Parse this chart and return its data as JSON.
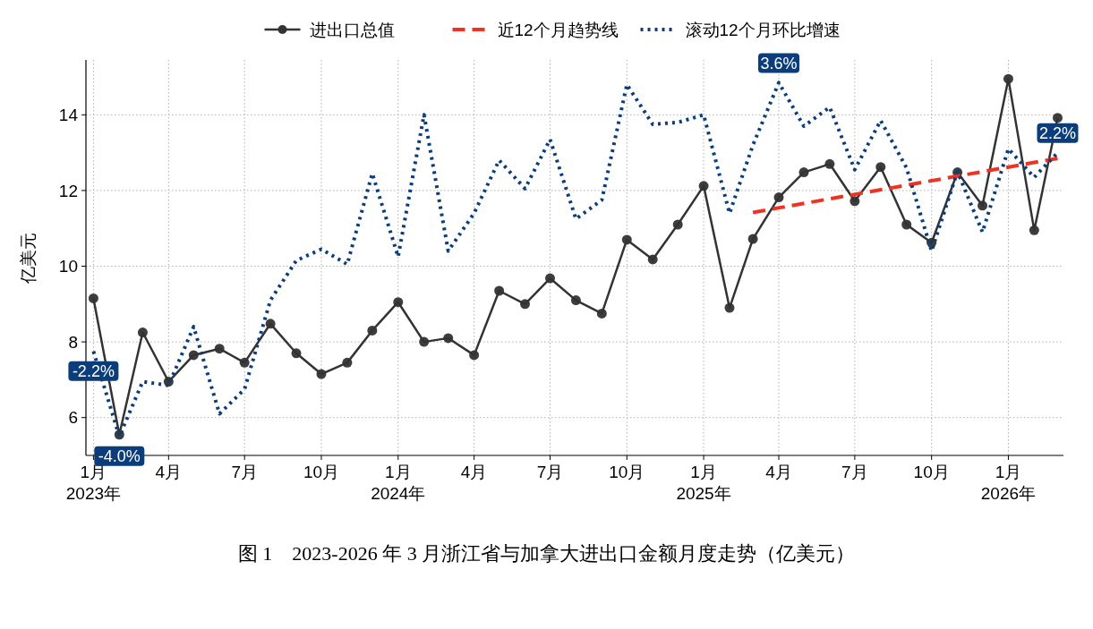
{
  "chart_data": {
    "type": "line",
    "title": "图 1　2023-2026 年 3 月浙江省与加拿大进出口金额月度走势（亿美元）",
    "ylabel": "亿美元",
    "x": [
      "2023-01",
      "2023-02",
      "2023-03",
      "2023-04",
      "2023-05",
      "2023-06",
      "2023-07",
      "2023-08",
      "2023-09",
      "2023-10",
      "2023-11",
      "2023-12",
      "2024-01",
      "2024-02",
      "2024-03",
      "2024-04",
      "2024-05",
      "2024-06",
      "2024-07",
      "2024-08",
      "2024-09",
      "2024-10",
      "2024-11",
      "2024-12",
      "2025-01",
      "2025-02",
      "2025-03",
      "2025-04",
      "2025-05",
      "2025-06",
      "2025-07",
      "2025-08",
      "2025-09",
      "2025-10",
      "2025-11",
      "2025-12",
      "2026-01",
      "2026-02",
      "2026-03"
    ],
    "series": [
      {
        "name": "进出口总值",
        "color": "#333333",
        "marker": "circle",
        "line_style": "solid",
        "values": [
          9.15,
          5.55,
          8.25,
          6.95,
          7.65,
          7.82,
          7.45,
          8.48,
          7.7,
          7.15,
          7.45,
          8.3,
          9.05,
          8.0,
          8.1,
          7.65,
          9.35,
          9.0,
          9.68,
          9.1,
          8.75,
          10.7,
          10.18,
          11.1,
          12.12,
          8.9,
          10.72,
          11.82,
          12.48,
          12.7,
          11.72,
          12.62,
          11.1,
          10.62,
          12.48,
          11.6,
          14.95,
          10.95,
          13.92
        ]
      },
      {
        "name": "近12个月趋势线",
        "color": "#ee3322",
        "marker": "none",
        "line_style": "dashed",
        "x": [
          "2025-03",
          "2026-03"
        ],
        "values": [
          11.42,
          12.85
        ]
      },
      {
        "name": "滚动12个月环比增速",
        "color": "#0a3d7a",
        "marker": "none",
        "line_style": "dotted",
        "values": [
          7.75,
          5.5,
          6.95,
          6.85,
          8.4,
          6.1,
          6.75,
          9.1,
          10.15,
          10.45,
          10.05,
          12.45,
          10.25,
          14.0,
          10.4,
          11.4,
          12.8,
          12.05,
          13.35,
          11.25,
          11.75,
          14.8,
          13.75,
          13.8,
          14.0,
          11.4,
          13.2,
          14.85,
          13.7,
          14.2,
          12.55,
          13.85,
          12.6,
          10.4,
          12.5,
          10.9,
          13.1,
          12.35,
          13.0
        ]
      }
    ],
    "annotations": [
      {
        "text": "-2.2%",
        "x": "2023-01",
        "y": 7.75
      },
      {
        "text": "-4.0%",
        "x": "2023-02",
        "y": 5.5
      },
      {
        "text": "3.6%",
        "x": "2025-04",
        "y": 14.85
      },
      {
        "text": "2.2%",
        "x": "2026-03",
        "y": 13.0
      }
    ],
    "xlim": [
      "2022-12-23",
      "2026-03-08"
    ],
    "xticks": [
      {
        "value": "2023-01",
        "label": "1月\n2023年"
      },
      {
        "value": "2023-04",
        "label": "4月"
      },
      {
        "value": "2023-07",
        "label": "7月"
      },
      {
        "value": "2023-10",
        "label": "10月"
      },
      {
        "value": "2024-01",
        "label": "1月\n2024年"
      },
      {
        "value": "2024-04",
        "label": "4月"
      },
      {
        "value": "2024-07",
        "label": "7月"
      },
      {
        "value": "2024-10",
        "label": "10月"
      },
      {
        "value": "2025-01",
        "label": "1月\n2025年"
      },
      {
        "value": "2025-04",
        "label": "4月"
      },
      {
        "value": "2025-07",
        "label": "7月"
      },
      {
        "value": "2025-10",
        "label": "10月"
      },
      {
        "value": "2026-01",
        "label": "1月\n2026年"
      }
    ],
    "ylim": [
      5.0,
      15.45
    ],
    "yticks": [
      6,
      8,
      10,
      12,
      14
    ],
    "grid": true,
    "legend": "top"
  }
}
